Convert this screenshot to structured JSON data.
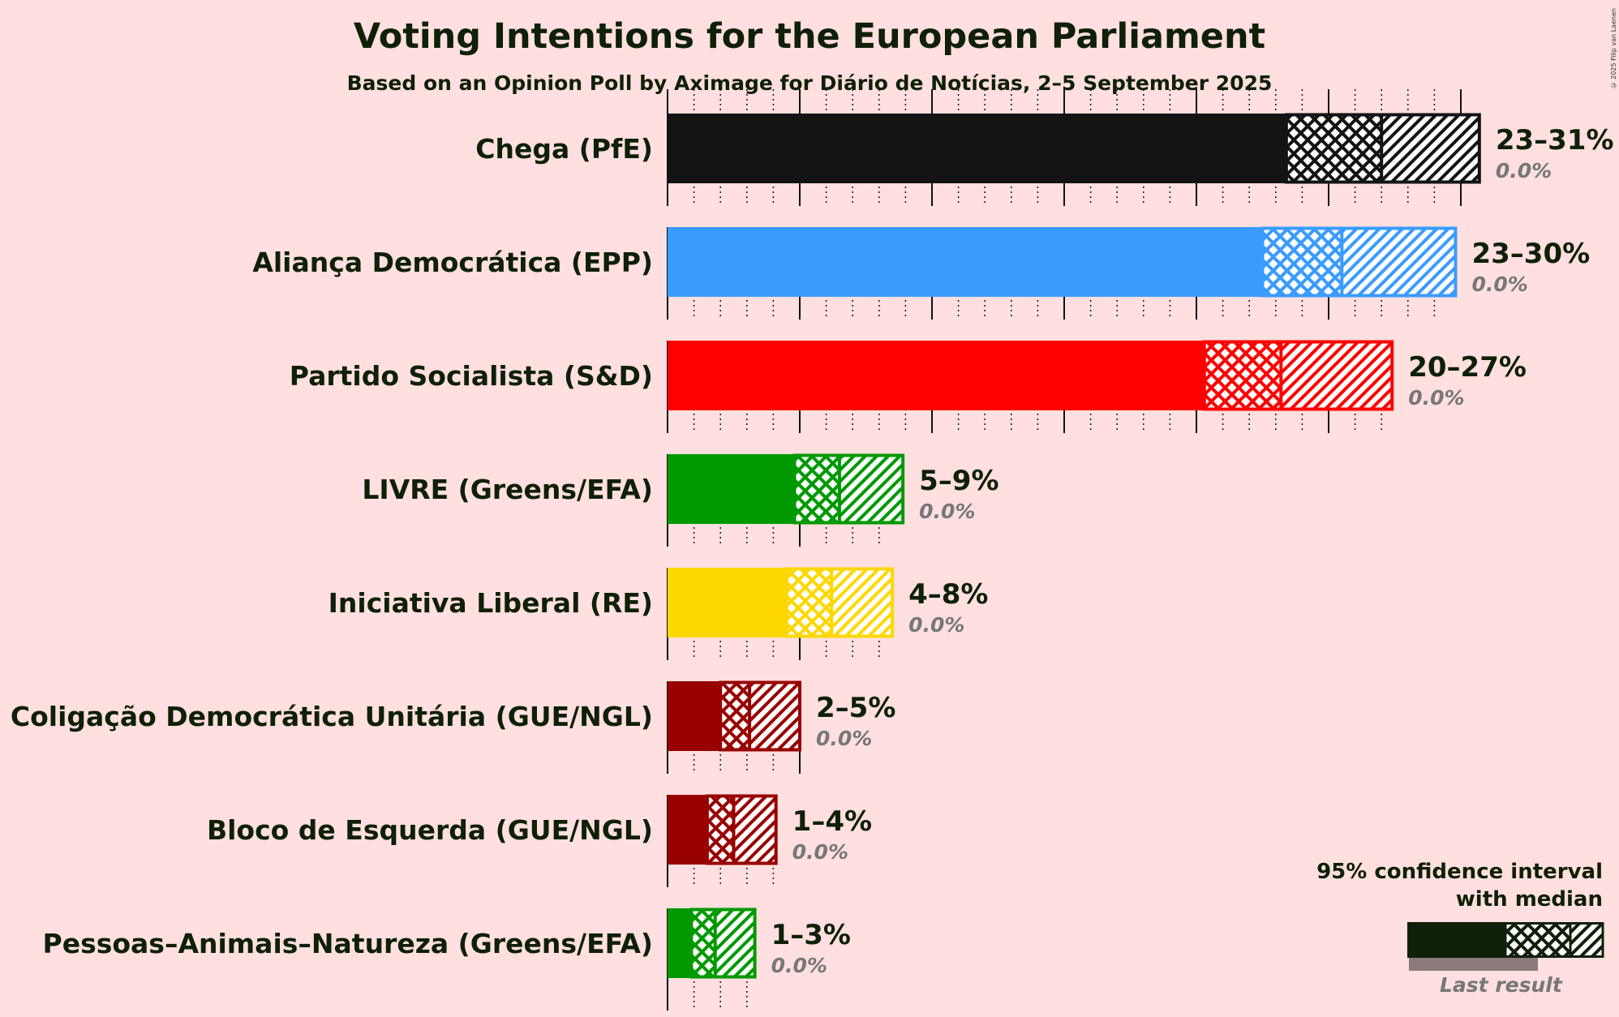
{
  "title": "Voting Intentions for the European Parliament",
  "subtitle": "Based on an Opinion Poll by Aximage for Diário de Notícias, 2–5 September 2025",
  "copyright": "© 2025 Filip van Laenen",
  "legend": {
    "line1": "95% confidence interval",
    "line2": "with median",
    "last_result": "Last result"
  },
  "chart_data": {
    "type": "bar",
    "orientation": "horizontal",
    "x_unit": "%",
    "xlim": [
      0,
      31
    ],
    "grid": "dotted minor every 1%, solid major every 5%",
    "categories": [
      "Chega (PfE)",
      "Aliança Democrática (EPP)",
      "Partido Socialista (S&D)",
      "LIVRE (Greens/EFA)",
      "Iniciativa Liberal (RE)",
      "Coligação Democrática Unitária (GUE/NGL)",
      "Bloco de Esquerda (GUE/NGL)",
      "Pessoas–Animais–Natureza (Greens/EFA)"
    ],
    "series": [
      {
        "category": "Chega (PfE)",
        "color": "#131313",
        "low": 23.4,
        "q_low": 25.0,
        "median": 27.0,
        "q_high": 28.5,
        "high": 30.7,
        "label": "23–31%",
        "last_result": "0.0%"
      },
      {
        "category": "Aliança Democrática (EPP)",
        "color": "#3a9bff",
        "low": 22.5,
        "q_low": 24.2,
        "median": 25.5,
        "q_high": 26.0,
        "high": 29.8,
        "label": "23–30%",
        "last_result": "0.0%"
      },
      {
        "category": "Partido Socialista (S&D)",
        "color": "#ff0000",
        "low": 20.3,
        "q_low": 21.8,
        "median": 23.2,
        "q_high": 23.7,
        "high": 27.4,
        "label": "20–27%",
        "last_result": "0.0%"
      },
      {
        "category": "LIVRE (Greens/EFA)",
        "color": "#009900",
        "low": 4.8,
        "q_low": 5.6,
        "median": 6.5,
        "q_high": 6.6,
        "high": 8.9,
        "label": "5–9%",
        "last_result": "0.0%"
      },
      {
        "category": "Iniciativa Liberal (RE)",
        "color": "#ffd700",
        "low": 4.5,
        "q_low": 5.2,
        "median": 6.2,
        "q_high": 6.3,
        "high": 8.5,
        "label": "4–8%",
        "last_result": "0.0%"
      },
      {
        "category": "Coligação Democrática Unitária (GUE/NGL)",
        "color": "#990000",
        "low": 2.0,
        "q_low": 2.6,
        "median": 3.1,
        "q_high": 3.2,
        "high": 5.0,
        "label": "2–5%",
        "last_result": "0.0%"
      },
      {
        "category": "Bloco de Esquerda (GUE/NGL)",
        "color": "#990000",
        "low": 1.5,
        "q_low": 2.0,
        "median": 2.5,
        "q_high": 2.6,
        "high": 4.1,
        "label": "1–4%",
        "last_result": "0.0%"
      },
      {
        "category": "Pessoas–Animais–Natureza (Greens/EFA)",
        "color": "#009900",
        "low": 0.9,
        "q_low": 1.4,
        "median": 1.8,
        "q_high": 1.9,
        "high": 3.3,
        "label": "1–3%",
        "last_result": "0.0%"
      }
    ]
  }
}
